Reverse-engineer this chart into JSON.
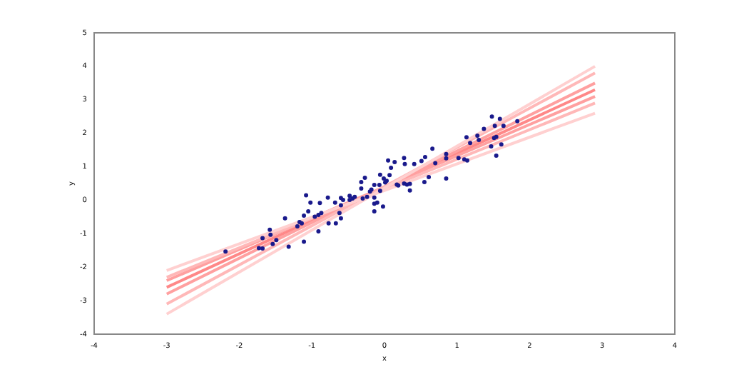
{
  "chart_data": {
    "type": "scatter",
    "xlabel": "x",
    "ylabel": "y",
    "xlim": [
      -4,
      4
    ],
    "ylim": [
      -4,
      5
    ],
    "xticks": [
      -4,
      -3,
      -2,
      -1,
      0,
      1,
      2,
      3,
      4
    ],
    "yticks": [
      -4,
      -3,
      -2,
      -1,
      0,
      1,
      2,
      3,
      4,
      5
    ],
    "grid": false,
    "legend": false,
    "marker": "circle",
    "series": [
      {
        "type": "line",
        "marker": "none",
        "color": "#ffd0d0",
        "x": [
          -3,
          2.9
        ],
        "values": [
          -3.4,
          4.0
        ]
      },
      {
        "type": "line",
        "marker": "none",
        "color": "#ffd0d0",
        "x": [
          -3,
          2.9
        ],
        "values": [
          -2.1,
          2.6
        ]
      },
      {
        "type": "line",
        "marker": "none",
        "color": "#ffb8b8",
        "x": [
          -3,
          2.9
        ],
        "values": [
          -3.1,
          3.8
        ]
      },
      {
        "type": "line",
        "marker": "none",
        "color": "#ffb8b8",
        "x": [
          -3,
          2.9
        ],
        "values": [
          -2.3,
          2.9
        ]
      },
      {
        "type": "line",
        "marker": "none",
        "color": "#ffa0a0",
        "x": [
          -3,
          2.9
        ],
        "values": [
          -2.8,
          3.5
        ]
      },
      {
        "type": "line",
        "marker": "none",
        "color": "#ffa0a0",
        "x": [
          -3,
          2.9
        ],
        "values": [
          -2.4,
          3.1
        ]
      },
      {
        "type": "line",
        "marker": "none",
        "color": "#ff8888",
        "x": [
          -3,
          2.9
        ],
        "values": [
          -2.6,
          3.3
        ]
      },
      {
        "color": "#1a1a8c",
        "x": [
          -2.19,
          -1.68,
          -1.73,
          -1.68,
          -1.58,
          -1.57,
          -1.54,
          -1.49,
          -1.37,
          -1.32,
          -1.2,
          -1.17,
          -1.14,
          -1.11,
          -1.11,
          -1.08,
          -1.05,
          -1.02,
          -0.96,
          -0.91,
          -0.91,
          -0.89,
          -0.87,
          -0.78,
          -0.77,
          -0.68,
          -0.67,
          -0.62,
          -0.6,
          -0.6,
          -0.6,
          -0.57,
          -0.48,
          -0.48,
          -0.44,
          -0.41,
          -0.32,
          -0.32,
          -0.27,
          -0.3,
          -0.24,
          -0.18,
          -0.14,
          -0.14,
          -0.14,
          -0.1,
          -0.07,
          -0.06,
          -0.06,
          -0.02,
          -0.01,
          -0.2,
          -0.14,
          0.01,
          0.03,
          0.05,
          0.07,
          0.09,
          0.14,
          0.17,
          0.19,
          0.27,
          0.28,
          0.27,
          0.31,
          0.35,
          0.35,
          0.41,
          0.51,
          0.55,
          0.56,
          0.61,
          0.66,
          0.7,
          0.85,
          0.85,
          0.85,
          1.02,
          1.1,
          1.14,
          1.13,
          1.18,
          1.28,
          1.3,
          1.37,
          1.47,
          1.48,
          1.51,
          1.52,
          1.54,
          1.54,
          1.59,
          1.61,
          1.64,
          1.83
        ],
        "values": [
          -1.53,
          -1.13,
          -1.43,
          -1.44,
          -0.88,
          -1.03,
          -1.31,
          -1.19,
          -0.54,
          -1.39,
          -0.78,
          -0.65,
          -0.69,
          -0.46,
          -1.24,
          0.15,
          -0.33,
          -0.07,
          -0.49,
          -0.93,
          -0.44,
          -0.08,
          -0.38,
          0.08,
          -0.69,
          -0.07,
          -0.69,
          -0.38,
          -0.15,
          -0.54,
          0.07,
          0.01,
          0.13,
          0.01,
          0.05,
          0.1,
          0.54,
          0.35,
          0.67,
          0.05,
          0.1,
          0.32,
          0.46,
          -0.1,
          -0.33,
          -0.07,
          0.46,
          0.76,
          0.28,
          -0.19,
          0.65,
          0.26,
          0.08,
          0.53,
          0.58,
          1.19,
          0.75,
          0.97,
          1.14,
          0.47,
          0.44,
          1.26,
          1.08,
          0.5,
          0.47,
          0.49,
          0.29,
          1.08,
          1.17,
          0.54,
          1.29,
          0.69,
          1.54,
          1.11,
          1.38,
          1.25,
          0.65,
          1.26,
          1.22,
          1.19,
          1.88,
          1.71,
          1.93,
          1.8,
          2.13,
          1.61,
          2.5,
          1.86,
          2.22,
          1.89,
          1.33,
          2.43,
          1.67,
          2.22,
          2.36
        ]
      }
    ]
  }
}
